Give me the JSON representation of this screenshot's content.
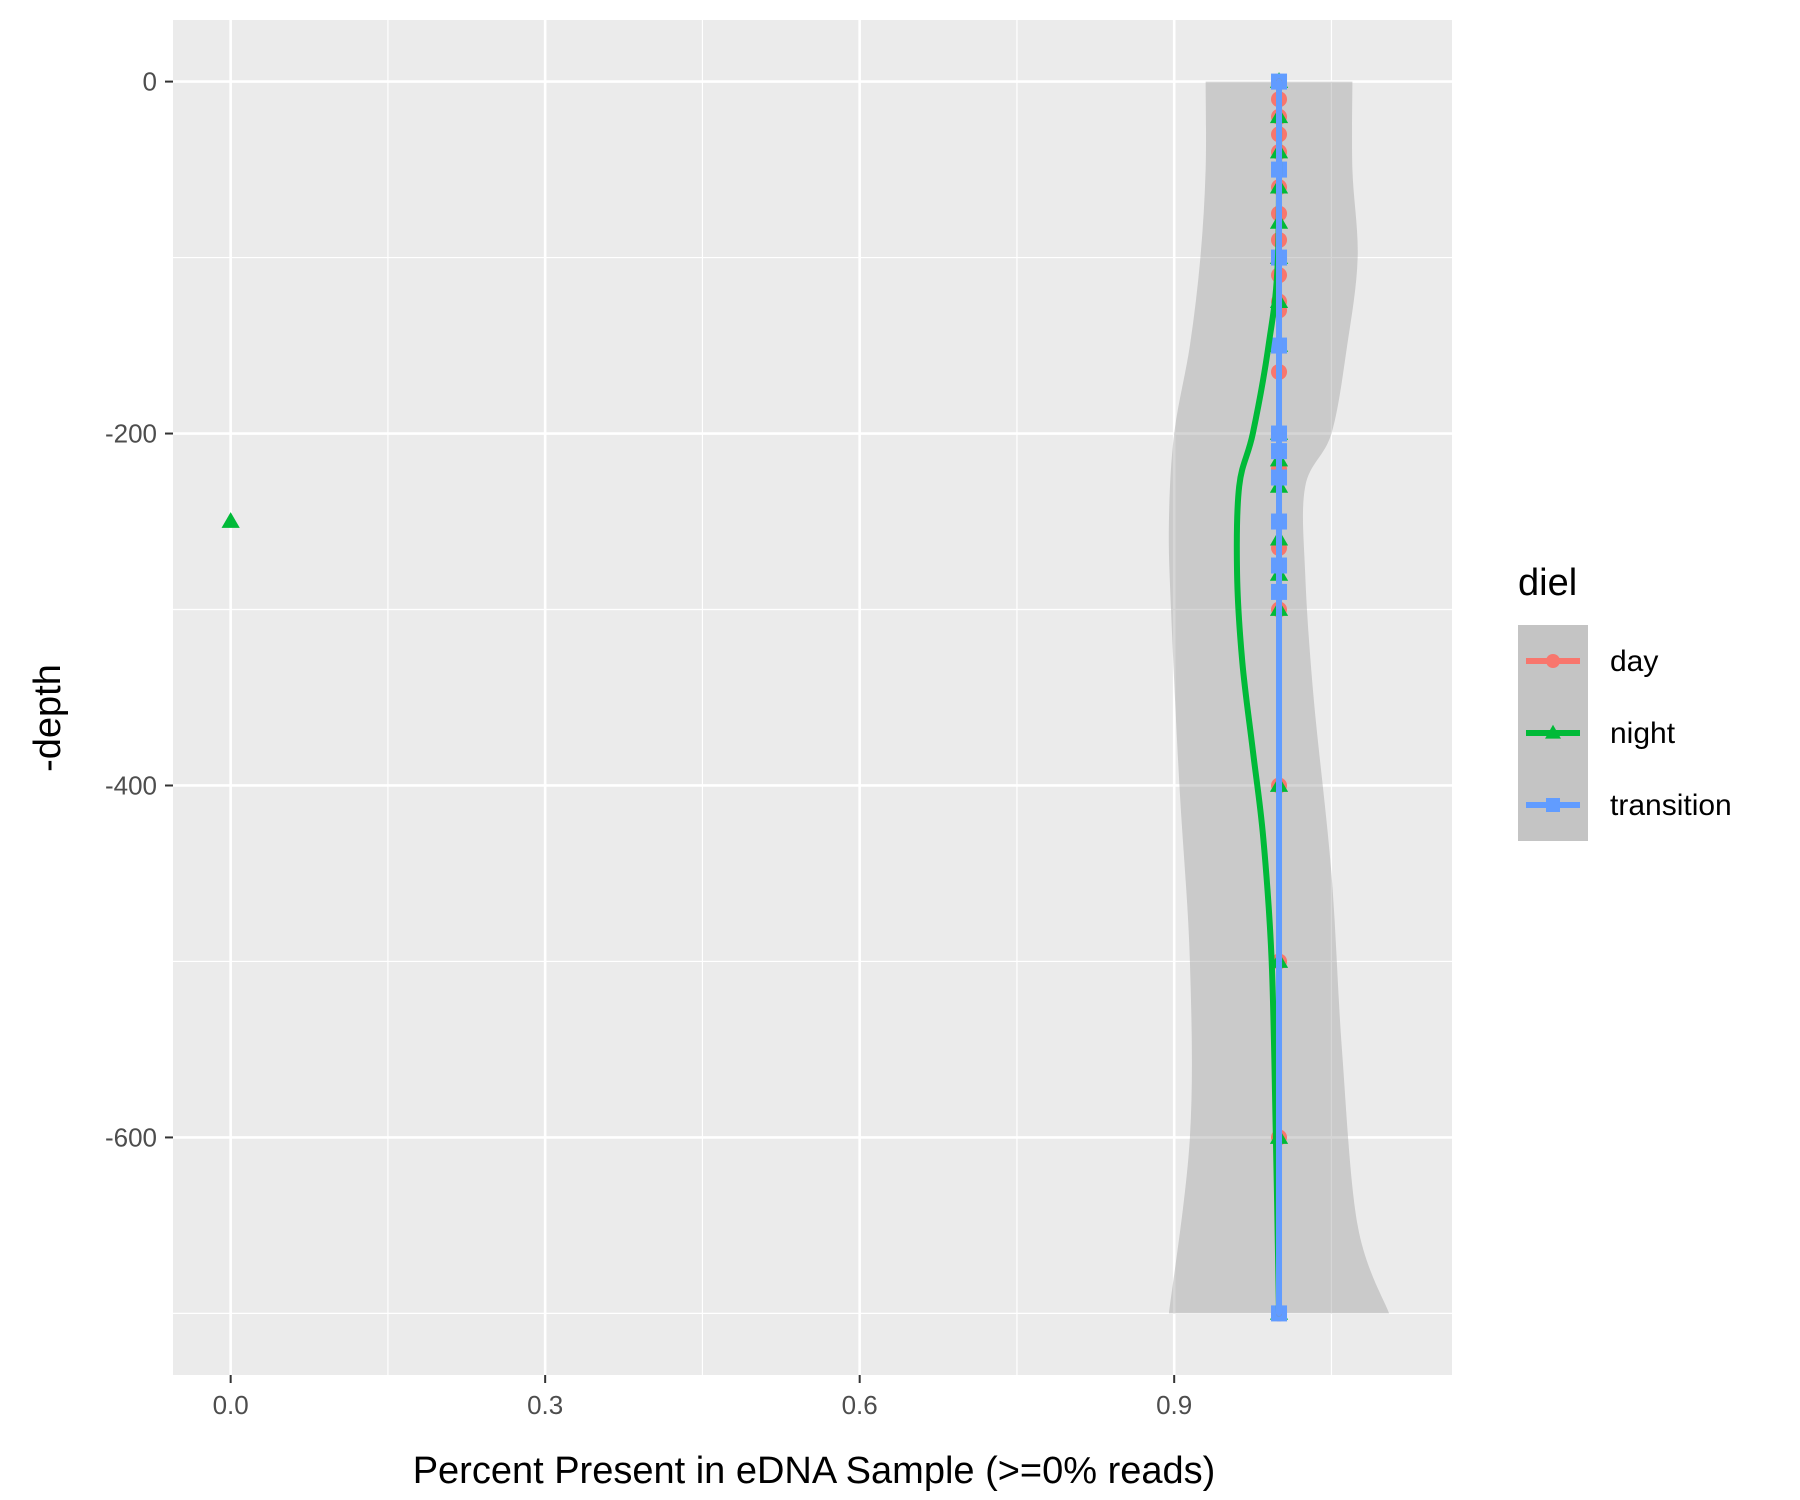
{
  "chart_data": {
    "type": "line",
    "xlabel": "Percent Present in eDNA Sample (>=0% reads)",
    "ylabel": "-depth",
    "xlim": [
      -0.055,
      1.165
    ],
    "ylim": [
      -735,
      35
    ],
    "x_ticks": [
      0.0,
      0.3,
      0.6,
      0.9
    ],
    "x_tick_labels": [
      "0.0",
      "0.3",
      "0.6",
      "0.9"
    ],
    "y_ticks": [
      0,
      -200,
      -400,
      -600
    ],
    "y_tick_labels": [
      "0",
      "-200",
      "-400",
      "-600"
    ],
    "grid": true,
    "legend": {
      "title": "diel",
      "placement": "right"
    },
    "series": [
      {
        "name": "day",
        "color": "#F8766D",
        "marker": "circle",
        "points": [
          [
            1,
            0
          ],
          [
            1,
            -10
          ],
          [
            1,
            -20
          ],
          [
            1,
            -30
          ],
          [
            1,
            -40
          ],
          [
            1,
            -50
          ],
          [
            1,
            -60
          ],
          [
            1,
            -75
          ],
          [
            1,
            -90
          ],
          [
            1,
            -100
          ],
          [
            1,
            -110
          ],
          [
            1,
            -125
          ],
          [
            1,
            -130
          ],
          [
            1,
            -150
          ],
          [
            1,
            -165
          ],
          [
            1,
            -200
          ],
          [
            1,
            -210
          ],
          [
            1,
            -220
          ],
          [
            1,
            -250
          ],
          [
            1,
            -265
          ],
          [
            1,
            -275
          ],
          [
            1,
            -300
          ],
          [
            1,
            -400
          ],
          [
            1,
            -500
          ],
          [
            1,
            -600
          ],
          [
            1,
            -700
          ]
        ],
        "smooth": [
          [
            1,
            0
          ],
          [
            1,
            -700
          ]
        ]
      },
      {
        "name": "night",
        "color": "#00BA38",
        "marker": "triangle",
        "points": [
          [
            1,
            0
          ],
          [
            1,
            -20
          ],
          [
            1,
            -40
          ],
          [
            1,
            -60
          ],
          [
            1,
            -80
          ],
          [
            1,
            -100
          ],
          [
            1,
            -125
          ],
          [
            1,
            -150
          ],
          [
            1,
            -200
          ],
          [
            1,
            -215
          ],
          [
            1,
            -230
          ],
          [
            0,
            -250
          ],
          [
            1,
            -260
          ],
          [
            1,
            -280
          ],
          [
            1,
            -300
          ],
          [
            1,
            -400
          ],
          [
            1,
            -500
          ],
          [
            1,
            -600
          ],
          [
            1,
            -700
          ]
        ],
        "smooth": [
          [
            1,
            0
          ],
          [
            0.999,
            -100
          ],
          [
            0.99,
            -150
          ],
          [
            0.975,
            -200
          ],
          [
            0.962,
            -230
          ],
          [
            0.96,
            -280
          ],
          [
            0.965,
            -330
          ],
          [
            0.975,
            -380
          ],
          [
            0.985,
            -430
          ],
          [
            0.993,
            -500
          ],
          [
            0.997,
            -600
          ],
          [
            1,
            -700
          ]
        ],
        "ribbon_lower": [
          [
            0.93,
            0
          ],
          [
            0.93,
            -50
          ],
          [
            0.925,
            -100
          ],
          [
            0.915,
            -150
          ],
          [
            0.9,
            -200
          ],
          [
            0.895,
            -250
          ],
          [
            0.897,
            -300
          ],
          [
            0.905,
            -400
          ],
          [
            0.915,
            -500
          ],
          [
            0.915,
            -600
          ],
          [
            0.895,
            -700
          ]
        ],
        "ribbon_upper": [
          [
            1.07,
            0
          ],
          [
            1.07,
            -50
          ],
          [
            1.075,
            -100
          ],
          [
            1.065,
            -150
          ],
          [
            1.05,
            -200
          ],
          [
            1.025,
            -230
          ],
          [
            1.025,
            -280
          ],
          [
            1.033,
            -350
          ],
          [
            1.05,
            -450
          ],
          [
            1.06,
            -550
          ],
          [
            1.075,
            -650
          ],
          [
            1.105,
            -700
          ]
        ]
      },
      {
        "name": "transition",
        "color": "#619CFF",
        "marker": "square",
        "points": [
          [
            1,
            0
          ],
          [
            1,
            -50
          ],
          [
            1,
            -100
          ],
          [
            1,
            -150
          ],
          [
            1,
            -200
          ],
          [
            1,
            -210
          ],
          [
            1,
            -225
          ],
          [
            1,
            -250
          ],
          [
            1,
            -275
          ],
          [
            1,
            -290
          ],
          [
            1,
            -700
          ]
        ],
        "smooth": [
          [
            1,
            0
          ],
          [
            1,
            -700
          ]
        ]
      }
    ]
  }
}
